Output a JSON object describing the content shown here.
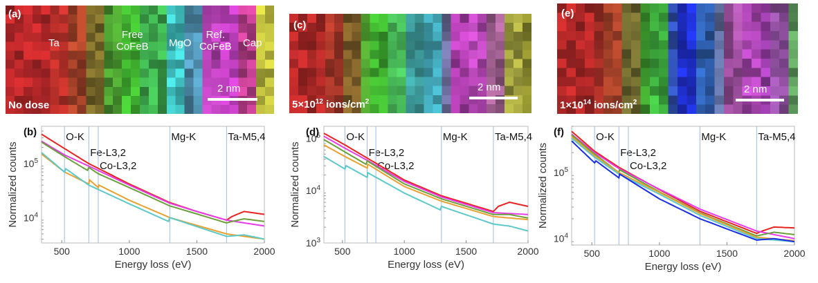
{
  "maps": [
    {
      "panel": "(a)",
      "dose": "No dose",
      "dose_base": "",
      "dose_exp": "",
      "scale_bar": "2 nm",
      "layer_labels": [
        {
          "text": "Ta"
        },
        {
          "text": "Free\nCoFeB"
        },
        {
          "text": "MgO"
        },
        {
          "text": "Ref.\nCoFeB"
        },
        {
          "text": "Cap"
        }
      ],
      "bands": [
        "#b8282a",
        "#b8282a",
        "#b8302a",
        "#a8442a",
        "#7a6a2a",
        "#4a9a30",
        "#40b030",
        "#40b050",
        "#40c0c0",
        "#5090b0",
        "#b040b0",
        "#c040c0",
        "#c04090",
        "#c0c040"
      ]
    },
    {
      "panel": "(c)",
      "dose": "",
      "dose_base": "5×10",
      "dose_exp": "12",
      "dose_unit": " ions/cm",
      "dose_unit_exp": "2",
      "scale_bar": "2 nm",
      "bands": [
        "#b02828",
        "#b02a28",
        "#a8382a",
        "#80602a",
        "#50a030",
        "#40b030",
        "#48b858",
        "#40a0a0",
        "#40a0b0",
        "#7070a0",
        "#b040b0",
        "#b848b8",
        "#a06090",
        "#a0a040",
        "#909030"
      ]
    },
    {
      "panel": "(e)",
      "dose": "",
      "dose_base": "1×10",
      "dose_exp": "14",
      "dose_unit": " ions/cm",
      "dose_unit_exp": "2",
      "scale_bar": "2 nm",
      "bands": [
        "#b02828",
        "#b02828",
        "#a83028",
        "#a04028",
        "#706a30",
        "#40a030",
        "#40b040",
        "#3050b0",
        "#2030d0",
        "#3060b0",
        "#6070a0",
        "#a050a0",
        "#b048b8",
        "#a040b0",
        "#9050a0",
        "#60a060"
      ]
    }
  ],
  "chart_data": [
    {
      "type": "line",
      "panel": "(b)",
      "xlabel": "Energy loss (eV)",
      "ylabel": "Normalized counts",
      "xlim": [
        350,
        2000
      ],
      "ylim": [
        3400,
        490000
      ],
      "yscale": "log",
      "xticks": [
        500,
        1000,
        1500,
        2000
      ],
      "yticks": [
        {
          "v": 10000,
          "b": "10",
          "e": "4"
        },
        {
          "v": 100000,
          "b": "10",
          "e": "5"
        }
      ],
      "edges": [
        {
          "label": "O-K",
          "x": 520
        },
        {
          "label": "Fe-L3,2",
          "x": 700
        },
        {
          "label": "Co-L3,2",
          "x": 770
        },
        {
          "label": "Mg-K",
          "x": 1300
        },
        {
          "label": "Ta-M5,4",
          "x": 1720
        }
      ],
      "series": [
        {
          "name": "red",
          "color": "#e8231f",
          "x": [
            350,
            520,
            700,
            1000,
            1300,
            1500,
            1720,
            1760,
            1850,
            2000
          ],
          "y": [
            350000,
            190000,
            100000,
            42000,
            19000,
            13000,
            9000,
            10500,
            13000,
            11500
          ]
        },
        {
          "name": "magenta",
          "color": "#e83ae8",
          "x": [
            350,
            520,
            700,
            1000,
            1300,
            1500,
            1720,
            2000
          ],
          "y": [
            260000,
            145000,
            90000,
            40000,
            18500,
            13000,
            9000,
            7000
          ]
        },
        {
          "name": "green",
          "color": "#6aa03a",
          "x": [
            350,
            520,
            690,
            700,
            770,
            1000,
            1300,
            1720,
            1760,
            1850,
            2000
          ],
          "y": [
            250000,
            135000,
            75000,
            85000,
            65000,
            36000,
            16500,
            8000,
            8500,
            9500,
            8500
          ]
        },
        {
          "name": "orange",
          "color": "#e8a030",
          "x": [
            350,
            520,
            700,
            705,
            770,
            775,
            1000,
            1300,
            1720,
            2000
          ],
          "y": [
            150000,
            70000,
            42000,
            50000,
            36000,
            40000,
            21000,
            10000,
            5000,
            4000
          ]
        },
        {
          "name": "cyan",
          "color": "#5cc8c8",
          "x": [
            350,
            520,
            530,
            700,
            1000,
            1290,
            1300,
            1720,
            1850,
            2000
          ],
          "y": [
            160000,
            70000,
            80000,
            40000,
            18000,
            8500,
            10000,
            4500,
            4800,
            4000
          ]
        }
      ]
    },
    {
      "type": "line",
      "panel": "(d)",
      "xlabel": "Energy loss (eV)",
      "ylabel": "Normalized counts",
      "xlim": [
        350,
        2000
      ],
      "ylim": [
        1000,
        170000
      ],
      "yscale": "log",
      "xticks": [
        500,
        1000,
        1500,
        2000
      ],
      "yticks": [
        {
          "v": 1000,
          "b": "10",
          "e": "3"
        },
        {
          "v": 10000,
          "b": "10",
          "e": "4"
        },
        {
          "v": 100000,
          "b": "10",
          "e": "5"
        }
      ],
      "edges": [
        {
          "label": "O-K",
          "x": 520
        },
        {
          "label": "Fe-L3,2",
          "x": 700
        },
        {
          "label": "Co-L3,2",
          "x": 770
        },
        {
          "label": "Mg-K",
          "x": 1300
        },
        {
          "label": "Ta-M5,4",
          "x": 1720
        }
      ],
      "series": [
        {
          "name": "red",
          "color": "#e8231f",
          "x": [
            350,
            520,
            700,
            1000,
            1300,
            1720,
            1760,
            1850,
            2000
          ],
          "y": [
            125000,
            75000,
            42000,
            16000,
            8000,
            4000,
            5000,
            6000,
            5000
          ]
        },
        {
          "name": "magenta",
          "color": "#e83ae8",
          "x": [
            350,
            520,
            700,
            1000,
            1300,
            1720,
            2000
          ],
          "y": [
            110000,
            65000,
            38000,
            15000,
            7600,
            3800,
            3500
          ]
        },
        {
          "name": "green",
          "color": "#6aa03a",
          "x": [
            350,
            520,
            690,
            700,
            1000,
            1300,
            1720,
            1850,
            2000
          ],
          "y": [
            95000,
            55000,
            32000,
            37000,
            13500,
            7000,
            3500,
            3500,
            3000
          ]
        },
        {
          "name": "orange",
          "color": "#e8a030",
          "x": [
            350,
            520,
            700,
            705,
            1000,
            1300,
            1720,
            2000
          ],
          "y": [
            75000,
            45000,
            27000,
            32000,
            12000,
            6300,
            3200,
            2800
          ]
        },
        {
          "name": "cyan",
          "color": "#5cc8c8",
          "x": [
            350,
            520,
            530,
            700,
            705,
            1000,
            1290,
            1300,
            1720,
            1850,
            2000
          ],
          "y": [
            45000,
            26000,
            30000,
            18000,
            22000,
            9000,
            4300,
            5000,
            2300,
            2100,
            1700
          ]
        }
      ]
    },
    {
      "type": "line",
      "panel": "(f)",
      "xlabel": "Energy loss (eV)",
      "ylabel": "Normalized counts",
      "xlim": [
        350,
        2000
      ],
      "ylim": [
        8000,
        500000
      ],
      "yscale": "log",
      "xticks": [
        500,
        1000,
        1500,
        2000
      ],
      "yticks": [
        {
          "v": 10000,
          "b": "10",
          "e": "4"
        },
        {
          "v": 100000,
          "b": "10",
          "e": "5"
        }
      ],
      "edges": [
        {
          "label": "O-K",
          "x": 520
        },
        {
          "label": "Fe-L3,2",
          "x": 700
        },
        {
          "label": "Co-L3,2",
          "x": 770
        },
        {
          "label": "Mg-K",
          "x": 1300
        },
        {
          "label": "Ta-M5,4",
          "x": 1720
        }
      ],
      "series": [
        {
          "name": "red",
          "color": "#e8231f",
          "x": [
            350,
            520,
            700,
            1000,
            1300,
            1720,
            1760,
            1850,
            2000
          ],
          "y": [
            420000,
            210000,
            120000,
            55000,
            26000,
            12000,
            13000,
            15000,
            14500
          ]
        },
        {
          "name": "magenta",
          "color": "#e83ae8",
          "x": [
            350,
            520,
            700,
            1000,
            1300,
            1720,
            2000
          ],
          "y": [
            380000,
            200000,
            115000,
            56000,
            28000,
            13000,
            10000
          ]
        },
        {
          "name": "green",
          "color": "#6aa03a",
          "x": [
            350,
            520,
            700,
            705,
            1000,
            1300,
            1720,
            1850,
            2000
          ],
          "y": [
            370000,
            190000,
            100000,
            110000,
            51000,
            24500,
            11000,
            12500,
            11500
          ]
        },
        {
          "name": "orange",
          "color": "#e8a030",
          "x": [
            350,
            520,
            700,
            1000,
            1300,
            1720,
            2000
          ],
          "y": [
            350000,
            180000,
            100000,
            50000,
            24000,
            10500,
            9300
          ]
        },
        {
          "name": "cyan",
          "color": "#5cc8c8",
          "x": [
            350,
            520,
            700,
            1000,
            1300,
            1720,
            2000
          ],
          "y": [
            330000,
            170000,
            95000,
            47000,
            22500,
            10000,
            9000
          ]
        },
        {
          "name": "blue",
          "color": "#1a2ee8",
          "x": [
            350,
            520,
            530,
            700,
            705,
            1000,
            1300,
            1720,
            1850,
            2000
          ],
          "y": [
            300000,
            140000,
            150000,
            83000,
            95000,
            40000,
            20000,
            9500,
            10000,
            9000
          ]
        }
      ]
    }
  ]
}
